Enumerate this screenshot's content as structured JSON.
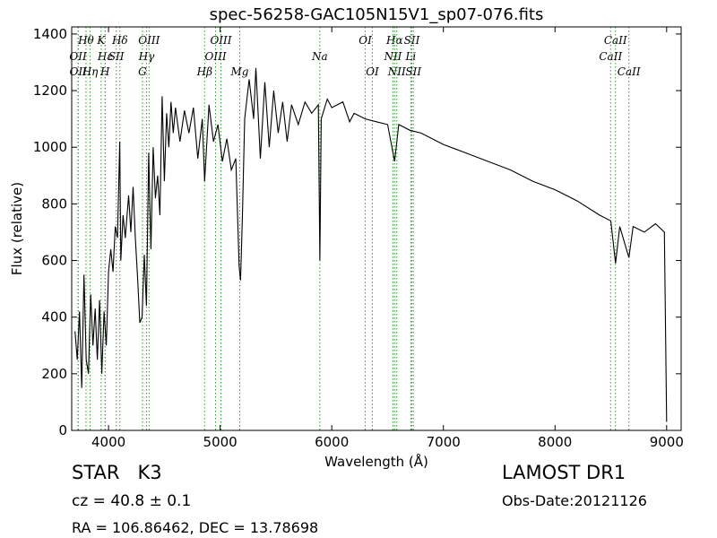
{
  "chart_data": {
    "type": "line",
    "title": "spec-56258-GAC105N15V1_sp07-076.fits",
    "x_label": "Wavelength (Å)",
    "y_label": "Flux (relative)",
    "color": "#000000",
    "line_color": "#2ca02c",
    "xlim": [
      3670,
      9130
    ],
    "ylim": [
      0,
      1425
    ],
    "xticks": [
      4000,
      5000,
      6000,
      7000,
      8000,
      9000
    ],
    "yticks": [
      0,
      200,
      400,
      600,
      800,
      1000,
      1200,
      1400
    ],
    "x": [
      3700,
      3720,
      3740,
      3760,
      3780,
      3800,
      3820,
      3840,
      3860,
      3880,
      3900,
      3920,
      3940,
      3960,
      3980,
      4000,
      4020,
      4040,
      4060,
      4080,
      4100,
      4110,
      4130,
      4150,
      4180,
      4200,
      4220,
      4240,
      4260,
      4280,
      4300,
      4320,
      4340,
      4360,
      4380,
      4400,
      4420,
      4440,
      4460,
      4480,
      4500,
      4520,
      4540,
      4560,
      4580,
      4600,
      4640,
      4680,
      4720,
      4760,
      4800,
      4840,
      4861,
      4900,
      4940,
      4980,
      5020,
      5060,
      5100,
      5140,
      5170,
      5183,
      5200,
      5220,
      5260,
      5300,
      5320,
      5360,
      5400,
      5440,
      5480,
      5520,
      5560,
      5600,
      5640,
      5700,
      5760,
      5820,
      5880,
      5893,
      5905,
      5960,
      6000,
      6100,
      6160,
      6200,
      6300,
      6400,
      6500,
      6563,
      6600,
      6700,
      6800,
      7000,
      7200,
      7400,
      7600,
      7800,
      8000,
      8200,
      8400,
      8500,
      8542,
      8580,
      8662,
      8700,
      8800,
      8900,
      8980,
      9000
    ],
    "values": [
      350,
      250,
      420,
      150,
      550,
      250,
      200,
      480,
      300,
      430,
      250,
      460,
      200,
      420,
      300,
      560,
      640,
      560,
      720,
      680,
      1020,
      600,
      760,
      680,
      830,
      700,
      860,
      680,
      540,
      380,
      400,
      620,
      440,
      980,
      640,
      1000,
      820,
      900,
      760,
      1180,
      880,
      1120,
      1000,
      1160,
      1050,
      1140,
      1020,
      1130,
      1050,
      1140,
      960,
      1100,
      880,
      1150,
      1020,
      1080,
      950,
      1030,
      920,
      960,
      580,
      530,
      760,
      1100,
      1240,
      1100,
      1280,
      960,
      1230,
      1000,
      1200,
      1050,
      1160,
      1020,
      1150,
      1080,
      1160,
      1120,
      1150,
      600,
      1100,
      1170,
      1140,
      1160,
      1090,
      1120,
      1100,
      1090,
      1080,
      950,
      1080,
      1060,
      1050,
      1010,
      980,
      950,
      920,
      880,
      850,
      810,
      760,
      740,
      590,
      720,
      610,
      720,
      700,
      730,
      700,
      30
    ],
    "lines": [
      {
        "label": "Hθ",
        "x": 3798
      },
      {
        "label": "K",
        "x": 3934
      },
      {
        "label": "Hδ",
        "x": 4102
      },
      {
        "label": "OIII",
        "x": 4363
      },
      {
        "label": "OIII",
        "x": 5007
      },
      {
        "label": "OI",
        "x": 6300
      },
      {
        "label": "Hα",
        "x": 6563
      },
      {
        "label": "SII",
        "x": 6717
      },
      {
        "label": "CaII",
        "x": 8542
      },
      {
        "label": "OII",
        "x": 3727
      },
      {
        "label": "Hε",
        "x": 3970
      },
      {
        "label": "SII",
        "x": 4069
      },
      {
        "label": "Hγ",
        "x": 4340
      },
      {
        "label": "OIII",
        "x": 4959
      },
      {
        "label": "Na",
        "x": 5893
      },
      {
        "label": "NII",
        "x": 6548
      },
      {
        "label": "Li",
        "x": 6708
      },
      {
        "label": "CaII",
        "x": 8498
      },
      {
        "label": "OII",
        "x": 3729
      },
      {
        "label": "Hη",
        "x": 3835
      },
      {
        "label": "H",
        "x": 3969
      },
      {
        "label": "G",
        "x": 4304
      },
      {
        "label": "Hβ",
        "x": 4861
      },
      {
        "label": "Mg",
        "x": 5175
      },
      {
        "label": "OI",
        "x": 6364
      },
      {
        "label": "NII",
        "x": 6583
      },
      {
        "label": "SII",
        "x": 6731
      },
      {
        "label": "CaII",
        "x": 8662
      }
    ]
  },
  "footer": {
    "object_class": "STAR   K3",
    "redshift": "cz = 40.8 ± 0.1",
    "coordinates": "RA = 106.86462, DEC = 13.78698",
    "survey": "LAMOST DR1",
    "obs_date": "Obs-Date:20121126"
  }
}
